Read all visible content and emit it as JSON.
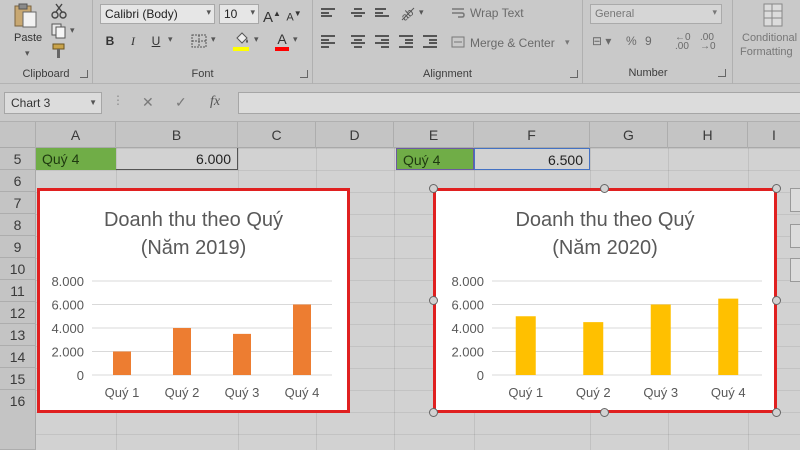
{
  "ribbon": {
    "clipboard": {
      "paste_label": "Paste",
      "group_label": "Clipboard"
    },
    "font": {
      "font_name": "Calibri (Body)",
      "font_size": "10",
      "grow_label": "A",
      "shrink_label": "A",
      "bold_label": "B",
      "italic_label": "I",
      "underline_label": "U",
      "fill_color": "#ffff00",
      "font_color": "#ff0000",
      "group_label": "Font"
    },
    "alignment": {
      "wrap_text_label": "Wrap Text",
      "merge_center_label": "Merge & Center",
      "group_label": "Alignment"
    },
    "number": {
      "format": "General",
      "group_label": "Number"
    },
    "styles": {
      "conditional_line1": "Conditional",
      "conditional_line2": "Formatting"
    }
  },
  "formula_bar": {
    "name_box": "Chart 3",
    "fx_label": "fx",
    "formula": ""
  },
  "columns": [
    "A",
    "B",
    "C",
    "D",
    "E",
    "F",
    "G",
    "H",
    "I"
  ],
  "rows": [
    "5",
    "6",
    "7",
    "8",
    "9",
    "10",
    "11",
    "12",
    "13",
    "14",
    "15",
    "16"
  ],
  "cells": {
    "A5": "Quý 4",
    "B5": "6.000",
    "E5": "Quý 4",
    "F5": "6.500"
  },
  "colors": {
    "accent_green": "#70ad47",
    "series_2019": "#ed7d31",
    "series_2020": "#ffc000",
    "highlight_border": "#e02020"
  },
  "chart_data": [
    {
      "type": "bar",
      "title_line1": "Doanh thu theo Quý",
      "title_line2": "(Năm 2019)",
      "categories": [
        "Quý 1",
        "Quý 2",
        "Quý 3",
        "Quý 4"
      ],
      "values": [
        2000,
        4000,
        3500,
        6000
      ],
      "ylim": [
        0,
        8000
      ],
      "yticks": [
        0,
        2000,
        4000,
        6000,
        8000
      ],
      "ytick_labels": [
        "0",
        "2.000",
        "4.000",
        "6.000",
        "8.000"
      ],
      "grid": true,
      "color": "#ed7d31"
    },
    {
      "type": "bar",
      "title_line1": "Doanh thu theo Quý",
      "title_line2": "(Năm 2020)",
      "categories": [
        "Quý 1",
        "Quý 2",
        "Quý 3",
        "Quý 4"
      ],
      "values": [
        5000,
        4500,
        6000,
        6500
      ],
      "ylim": [
        0,
        8000
      ],
      "yticks": [
        0,
        2000,
        4000,
        6000,
        8000
      ],
      "ytick_labels": [
        "0",
        "2.000",
        "4.000",
        "6.000",
        "8.000"
      ],
      "grid": true,
      "color": "#ffc000"
    }
  ]
}
